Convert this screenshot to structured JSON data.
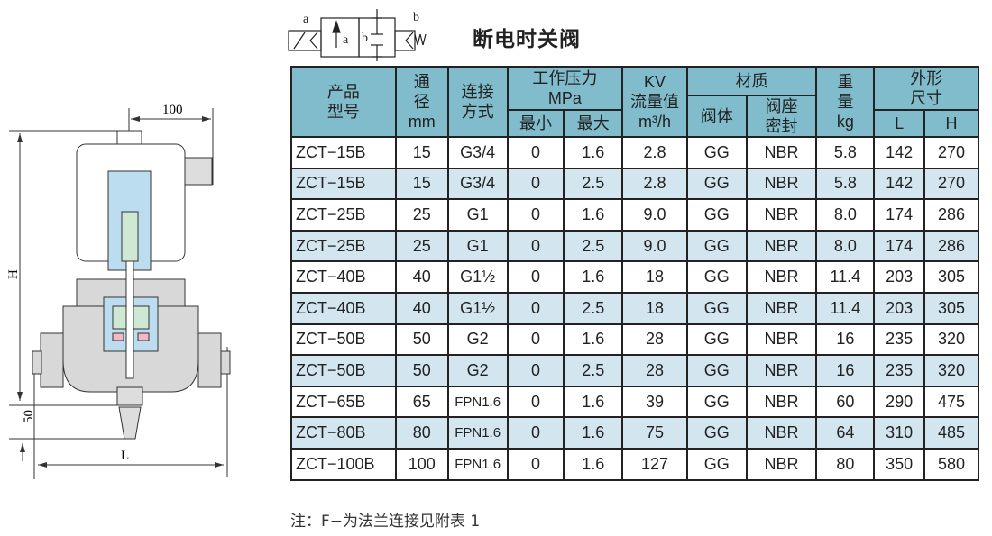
{
  "title": "断电时关阀",
  "symbol": {
    "label_a_left": "a",
    "label_b_right": "b",
    "box_a": "a",
    "box_b": "b"
  },
  "drawing": {
    "dim_top": "100",
    "dim_height": "H",
    "dim_bottom": "50",
    "dim_length": "L"
  },
  "table": {
    "headers": {
      "model": "产品型号",
      "model_l1": "产品",
      "model_l2": "型号",
      "dn_l1": "通",
      "dn_l2": "径",
      "dn_l3": "mm",
      "conn_l1": "连接",
      "conn_l2": "方式",
      "pressure_l1": "工作压力",
      "pressure_l2": "MPa",
      "min": "最小",
      "max": "最大",
      "kv_l1": "KV",
      "kv_l2": "流量值",
      "kv_l3": "m³/h",
      "material": "材质",
      "body": "阀体",
      "seal_l1": "阀座",
      "seal_l2": "密封",
      "weight_l1": "重",
      "weight_l2": "量",
      "weight_l3": "kg",
      "dim_l1": "外形",
      "dim_l2": "尺寸",
      "L": "L",
      "H": "H"
    },
    "rows": [
      [
        "ZCT−15B",
        "15",
        "G3/4",
        "0",
        "1.6",
        "2.8",
        "GG",
        "NBR",
        "5.8",
        "142",
        "270"
      ],
      [
        "ZCT−15B",
        "15",
        "G3/4",
        "0",
        "2.5",
        "2.8",
        "GG",
        "NBR",
        "5.8",
        "142",
        "270"
      ],
      [
        "ZCT−25B",
        "25",
        "G1",
        "0",
        "1.6",
        "9.0",
        "GG",
        "NBR",
        "8.0",
        "174",
        "286"
      ],
      [
        "ZCT−25B",
        "25",
        "G1",
        "0",
        "2.5",
        "9.0",
        "GG",
        "NBR",
        "8.0",
        "174",
        "286"
      ],
      [
        "ZCT−40B",
        "40",
        "G1½",
        "0",
        "1.6",
        "18",
        "GG",
        "NBR",
        "11.4",
        "203",
        "305"
      ],
      [
        "ZCT−40B",
        "40",
        "G1½",
        "0",
        "2.5",
        "18",
        "GG",
        "NBR",
        "11.4",
        "203",
        "305"
      ],
      [
        "ZCT−50B",
        "50",
        "G2",
        "0",
        "1.6",
        "28",
        "GG",
        "NBR",
        "16",
        "235",
        "320"
      ],
      [
        "ZCT−50B",
        "50",
        "G2",
        "0",
        "2.5",
        "28",
        "GG",
        "NBR",
        "16",
        "235",
        "320"
      ],
      [
        "ZCT−65B",
        "65",
        "FPN1.6",
        "0",
        "1.6",
        "39",
        "GG",
        "NBR",
        "60",
        "290",
        "475"
      ],
      [
        "ZCT−80B",
        "80",
        "FPN1.6",
        "0",
        "1.6",
        "75",
        "GG",
        "NBR",
        "64",
        "310",
        "485"
      ],
      [
        "ZCT−100B",
        "100",
        "FPN1.6",
        "0",
        "1.6",
        "127",
        "GG",
        "NBR",
        "80",
        "350",
        "580"
      ]
    ]
  },
  "note": "注：F−为法兰连接见附表 1",
  "colors": {
    "header": "#80bccb",
    "alt_row": "#d3e6f0",
    "coil_core": "#bcdcef",
    "green": "#cfe8d4",
    "body_gray": "#d8d8d8",
    "seal_pink": "#f2b8c6"
  }
}
